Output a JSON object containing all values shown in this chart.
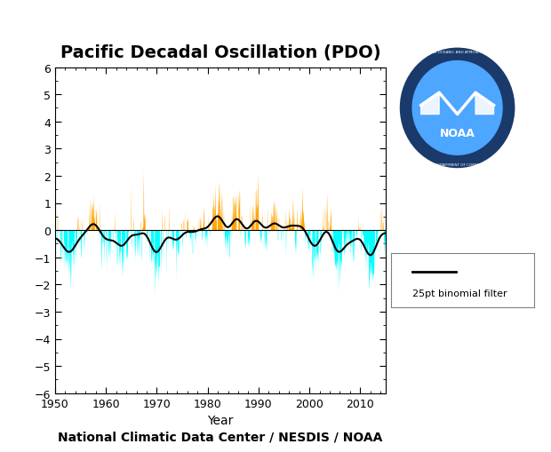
{
  "title": "Pacific Decadal Oscillation (PDO)",
  "xlabel": "Year",
  "subtitle": "National Climatic Data Center / NESDIS / NOAA",
  "legend_label": "25pt binomial filter",
  "xlim": [
    1950,
    2015
  ],
  "ylim": [
    -6.0,
    6.0
  ],
  "yticks": [
    -6.0,
    -5.0,
    -4.0,
    -3.0,
    -2.0,
    -1.0,
    0.0,
    1.0,
    2.0,
    3.0,
    4.0,
    5.0,
    6.0
  ],
  "xticks": [
    1950,
    1960,
    1970,
    1980,
    1990,
    2000,
    2010
  ],
  "bg_color": "#ffffff",
  "pos_color": "#FFA500",
  "neg_color": "#00FFFF",
  "line_color": "#000000",
  "title_fontsize": 14,
  "axis_fontsize": 10,
  "tick_fontsize": 9,
  "subtitle_fontsize": 10
}
